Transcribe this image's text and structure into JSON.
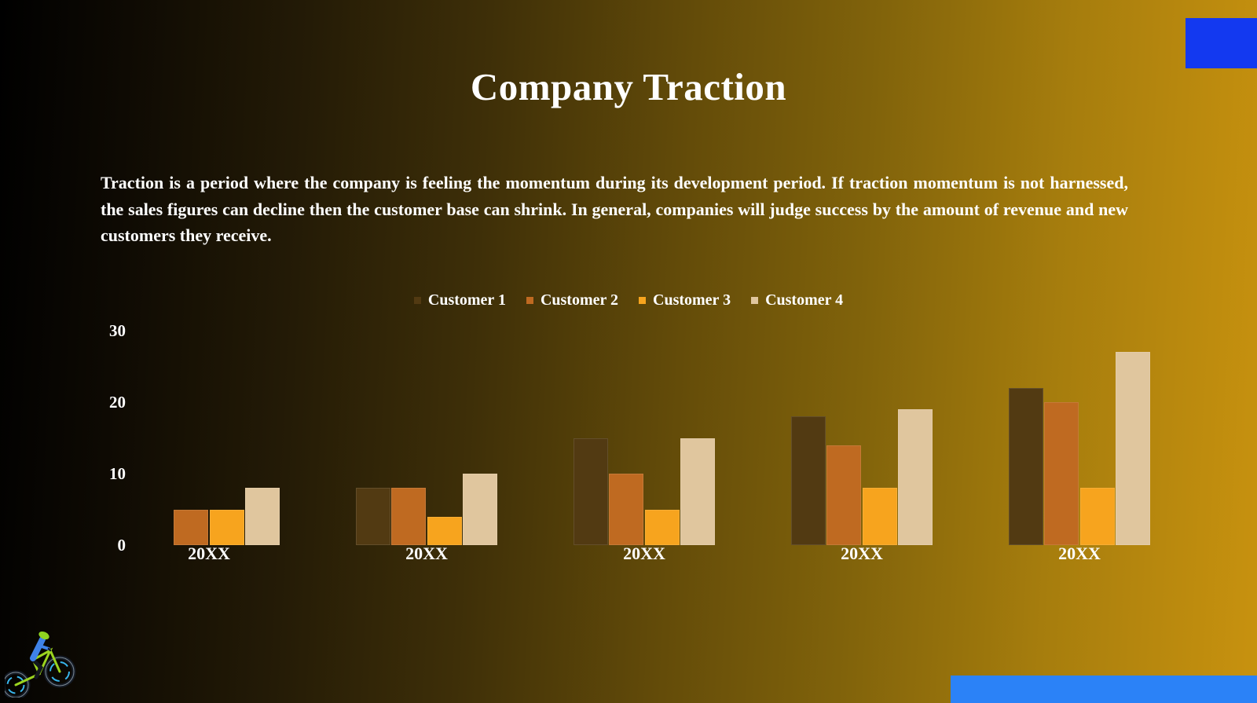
{
  "title": "Company Traction",
  "paragraph": "Traction is a period where the company is feeling the momentum during its development period. If traction momentum is not harnessed, the sales figures can decline then the customer base can shrink. In general, companies will judge success by the amount of revenue and new customers they receive.",
  "accents": {
    "top_right_color": "#1339F0",
    "bottom_right_color": "#2B82F7"
  },
  "logo": "mountain-bike-rider",
  "chart_data": {
    "type": "bar",
    "title": "",
    "xlabel": "",
    "ylabel": "",
    "categories": [
      "20XX",
      "20XX",
      "20XX",
      "20XX",
      "20XX"
    ],
    "series": [
      {
        "name": "Customer 1",
        "color": "#523A12",
        "values": [
          0,
          8,
          15,
          18,
          22
        ]
      },
      {
        "name": "Customer 2",
        "color": "#BF6A21",
        "values": [
          5,
          8,
          10,
          14,
          20
        ]
      },
      {
        "name": "Customer 3",
        "color": "#F7A41E",
        "values": [
          5,
          4,
          5,
          8,
          8
        ]
      },
      {
        "name": "Customer 4",
        "color": "#E0C69E",
        "values": [
          8,
          10,
          15,
          19,
          27
        ]
      }
    ],
    "ylim": [
      0,
      30
    ],
    "yticks": [
      0,
      10,
      20,
      30
    ],
    "tick_color": "#FFFFFF",
    "legend_position": "top",
    "grid": false
  }
}
